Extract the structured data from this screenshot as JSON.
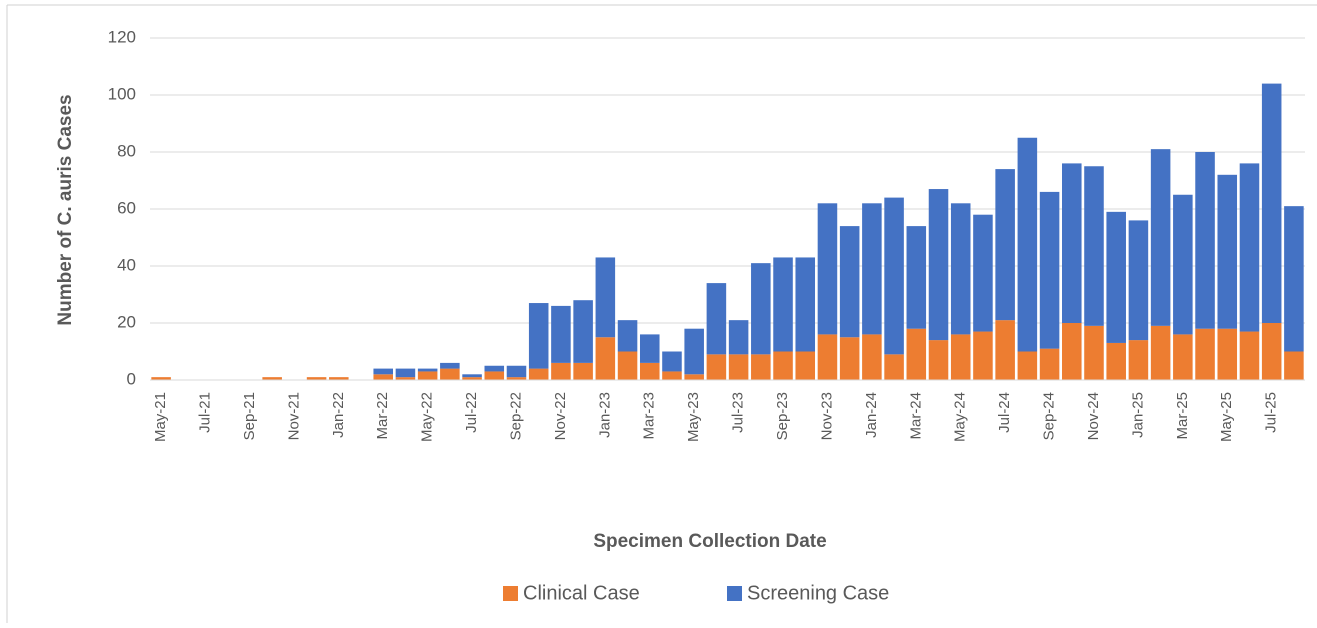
{
  "chart_data": {
    "type": "stacked_bar",
    "x_label": "Specimen Collection Date",
    "y_label": "Number of C. auris Cases",
    "categories": [
      "May-21",
      null,
      "Jul-21",
      null,
      "Sep-21",
      null,
      "Nov-21",
      null,
      "Jan-22",
      null,
      "Mar-22",
      null,
      "May-22",
      null,
      "Jul-22",
      null,
      "Sep-22",
      null,
      "Nov-22",
      null,
      "Jan-23",
      null,
      "Mar-23",
      null,
      "May-23",
      null,
      "Jul-23",
      null,
      "Sep-23",
      null,
      "Nov-23",
      null,
      "Jan-24",
      null,
      "Mar-24",
      null,
      "May-24",
      null,
      "Jul-24",
      null,
      "Sep-24",
      null,
      "Nov-24",
      null,
      "Jan-25",
      null,
      "Mar-25",
      null,
      "May-25",
      null,
      "Jul-25",
      null
    ],
    "series": [
      {
        "name": "Clinical Case",
        "color": "#ed7d31",
        "values": [
          1,
          0,
          0,
          0,
          0,
          1,
          0,
          1,
          1,
          0,
          2,
          1,
          3,
          4,
          1,
          3,
          1,
          4,
          6,
          6,
          15,
          10,
          6,
          3,
          2,
          9,
          9,
          9,
          10,
          10,
          16,
          15,
          16,
          9,
          18,
          14,
          16,
          17,
          21,
          10,
          11,
          20,
          19,
          13,
          14,
          19,
          16,
          18,
          18,
          17,
          20,
          10
        ]
      },
      {
        "name": "Screening Case",
        "color": "#4472c4",
        "values": [
          0,
          0,
          0,
          0,
          0,
          0,
          0,
          0,
          0,
          0,
          2,
          3,
          1,
          2,
          1,
          2,
          4,
          23,
          20,
          22,
          28,
          11,
          10,
          7,
          16,
          25,
          12,
          32,
          33,
          33,
          46,
          39,
          46,
          55,
          36,
          53,
          46,
          41,
          53,
          75,
          55,
          56,
          56,
          46,
          42,
          62,
          49,
          62,
          54,
          59,
          84,
          51
        ]
      }
    ],
    "ylim": [
      0,
      120
    ],
    "yticks": [
      0,
      20,
      40,
      60,
      80,
      100,
      120
    ],
    "grid": true,
    "legend": "bottom"
  }
}
